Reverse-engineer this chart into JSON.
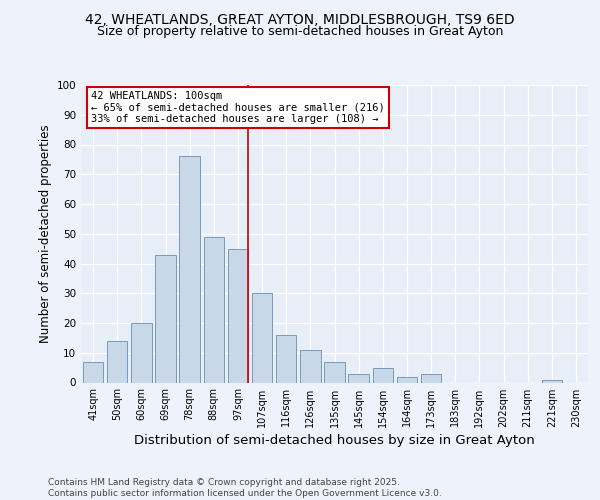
{
  "title1": "42, WHEATLANDS, GREAT AYTON, MIDDLESBROUGH, TS9 6ED",
  "title2": "Size of property relative to semi-detached houses in Great Ayton",
  "xlabel": "Distribution of semi-detached houses by size in Great Ayton",
  "ylabel": "Number of semi-detached properties",
  "categories": [
    "41sqm",
    "50sqm",
    "60sqm",
    "69sqm",
    "78sqm",
    "88sqm",
    "97sqm",
    "107sqm",
    "116sqm",
    "126sqm",
    "135sqm",
    "145sqm",
    "154sqm",
    "164sqm",
    "173sqm",
    "183sqm",
    "192sqm",
    "202sqm",
    "211sqm",
    "221sqm",
    "230sqm"
  ],
  "values": [
    7,
    14,
    20,
    43,
    76,
    49,
    45,
    30,
    16,
    11,
    7,
    3,
    5,
    2,
    3,
    0,
    0,
    0,
    0,
    1,
    0
  ],
  "bar_color": "#c8d8e8",
  "bar_edge_color": "#7799bb",
  "property_line_bin": 6,
  "annotation_text": "42 WHEATLANDS: 100sqm\n← 65% of semi-detached houses are smaller (216)\n33% of semi-detached houses are larger (108) →",
  "annotation_box_color": "#ffffff",
  "annotation_border_color": "#cc0000",
  "line_color": "#cc0000",
  "ylim": [
    0,
    100
  ],
  "yticks": [
    0,
    10,
    20,
    30,
    40,
    50,
    60,
    70,
    80,
    90,
    100
  ],
  "bg_color": "#e8eef8",
  "fig_color": "#eef2fa",
  "footer": "Contains HM Land Registry data © Crown copyright and database right 2025.\nContains public sector information licensed under the Open Government Licence v3.0.",
  "title1_fontsize": 10,
  "title2_fontsize": 9,
  "xlabel_fontsize": 9.5,
  "ylabel_fontsize": 8.5,
  "footer_fontsize": 6.5
}
